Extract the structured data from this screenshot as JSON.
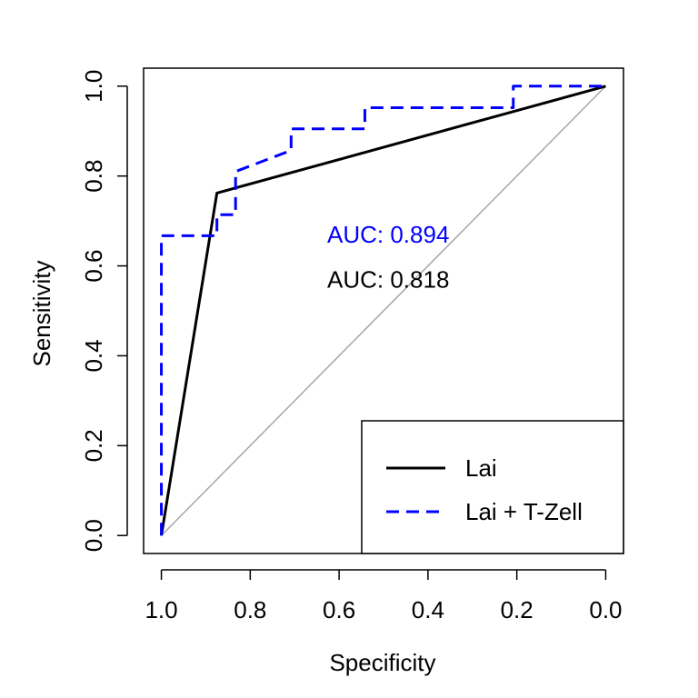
{
  "chart_data": {
    "type": "line",
    "xlabel": "Specificity",
    "ylabel": "Sensitivity",
    "xlim": [
      1.04,
      -0.04
    ],
    "ylim": [
      -0.04,
      1.04
    ],
    "x_ticks": [
      "1.0",
      "0.8",
      "0.6",
      "0.4",
      "0.2",
      "0.0"
    ],
    "x_tick_values": [
      1.0,
      0.8,
      0.6,
      0.4,
      0.2,
      0.0
    ],
    "y_ticks": [
      "0.0",
      "0.2",
      "0.4",
      "0.6",
      "0.8",
      "1.0"
    ],
    "y_tick_values": [
      0.0,
      0.2,
      0.4,
      0.6,
      0.8,
      1.0
    ],
    "reference_line": {
      "from": [
        1.0,
        0.0
      ],
      "to": [
        0.0,
        1.0
      ],
      "color": "#a6a6a6"
    },
    "series": [
      {
        "name": "Lai",
        "color": "#000000",
        "dash": "solid",
        "specificity": [
          1.0,
          0.875,
          0.0
        ],
        "sensitivity": [
          0.0,
          0.762,
          1.0
        ]
      },
      {
        "name": "Lai + T-Zell",
        "color": "#0000ff",
        "dash": "dashed",
        "specificity": [
          1.0,
          1.0,
          0.958,
          0.958,
          0.917,
          0.875,
          0.875,
          0.833,
          0.833,
          0.708,
          0.708,
          0.542,
          0.542,
          0.208,
          0.208,
          0.0
        ],
        "sensitivity": [
          0.0,
          0.667,
          0.667,
          0.667,
          0.667,
          0.667,
          0.714,
          0.714,
          0.81,
          0.857,
          0.905,
          0.905,
          0.952,
          0.952,
          1.0,
          1.0
        ]
      }
    ],
    "annotations": [
      {
        "text": "AUC: 0.894",
        "color": "#0000ff",
        "x": 0.5,
        "y": 0.67
      },
      {
        "text": "AUC: 0.818",
        "color": "#000000",
        "x": 0.5,
        "y": 0.57
      }
    ],
    "legend": {
      "placement": "bottom-right",
      "entries": [
        "Lai",
        "Lai + T-Zell"
      ]
    },
    "grid": false
  }
}
